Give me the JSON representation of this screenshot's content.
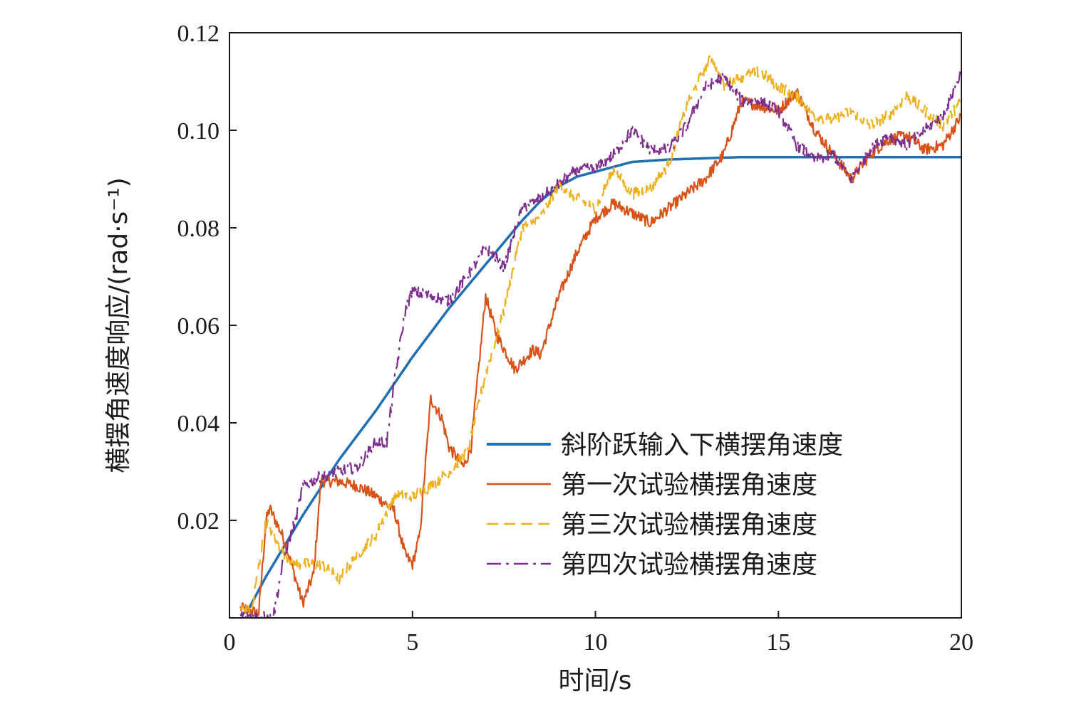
{
  "chart_data": {
    "type": "line",
    "title": "",
    "xlabel": "时间/s",
    "ylabel": "横摆角速度响应/(rad·s⁻¹)",
    "xlim": [
      0,
      20
    ],
    "ylim": [
      0,
      0.12
    ],
    "x_ticks": [
      0,
      5,
      10,
      15,
      20
    ],
    "y_ticks": [
      0.02,
      0.04,
      0.06,
      0.08,
      0.1,
      0.12
    ],
    "x_tick_labels": [
      "0",
      "5",
      "10",
      "15",
      "20"
    ],
    "y_tick_labels": [
      "0.02",
      "0.04",
      "0.06",
      "0.08",
      "0.10",
      "0.12"
    ],
    "grid": false,
    "legend_position": "bottom-right",
    "series": [
      {
        "name": "斜阶跃输入下横摆角速度",
        "color": "#1f6fb2",
        "style": "solid",
        "noise": 0,
        "points": [
          [
            0.3,
            0.0005
          ],
          [
            0.5,
            0.0015
          ],
          [
            1,
            0.0085
          ],
          [
            2,
            0.021
          ],
          [
            3,
            0.0325
          ],
          [
            4,
            0.0425
          ],
          [
            5,
            0.0535
          ],
          [
            6,
            0.0635
          ],
          [
            7,
            0.0725
          ],
          [
            8,
            0.0815
          ],
          [
            8.5,
            0.0855
          ],
          [
            9,
            0.0885
          ],
          [
            9.5,
            0.0905
          ],
          [
            10,
            0.0915
          ],
          [
            11,
            0.0935
          ],
          [
            12,
            0.094
          ],
          [
            14,
            0.0945
          ],
          [
            20,
            0.0945
          ]
        ]
      },
      {
        "name": "第一次试验横摆角速度",
        "color": "#d95319",
        "style": "solid",
        "noise": 0.0012,
        "points": [
          [
            0.3,
            0.002
          ],
          [
            0.8,
            0.001
          ],
          [
            1,
            0.02
          ],
          [
            1.1,
            0.0225
          ],
          [
            1.5,
            0.016
          ],
          [
            2,
            0.003
          ],
          [
            2.3,
            0.009
          ],
          [
            2.5,
            0.028
          ],
          [
            3,
            0.028
          ],
          [
            3.5,
            0.027
          ],
          [
            4,
            0.025
          ],
          [
            4.5,
            0.022
          ],
          [
            4.8,
            0.013
          ],
          [
            5,
            0.011
          ],
          [
            5.2,
            0.017
          ],
          [
            5.5,
            0.045
          ],
          [
            5.8,
            0.041
          ],
          [
            6,
            0.035
          ],
          [
            6.4,
            0.031
          ],
          [
            6.6,
            0.035
          ],
          [
            7,
            0.066
          ],
          [
            7.3,
            0.058
          ],
          [
            7.8,
            0.051
          ],
          [
            8.3,
            0.055
          ],
          [
            8.5,
            0.054
          ],
          [
            9,
            0.066
          ],
          [
            9.5,
            0.075
          ],
          [
            10,
            0.082
          ],
          [
            10.5,
            0.085
          ],
          [
            11,
            0.083
          ],
          [
            11.5,
            0.081
          ],
          [
            12,
            0.084
          ],
          [
            12.5,
            0.087
          ],
          [
            13,
            0.09
          ],
          [
            13.5,
            0.095
          ],
          [
            14,
            0.106
          ],
          [
            15,
            0.104
          ],
          [
            15.5,
            0.108
          ],
          [
            16,
            0.1
          ],
          [
            16.5,
            0.095
          ],
          [
            17,
            0.09
          ],
          [
            17.5,
            0.095
          ],
          [
            18,
            0.098
          ],
          [
            18.5,
            0.099
          ],
          [
            19,
            0.096
          ],
          [
            19.5,
            0.097
          ],
          [
            20,
            0.103
          ]
        ]
      },
      {
        "name": "第三次试验横摆角速度",
        "color": "#edb120",
        "style": "dashed",
        "noise": 0.0012,
        "points": [
          [
            0.3,
            0.002
          ],
          [
            0.6,
            0.001
          ],
          [
            1,
            0.02
          ],
          [
            1.4,
            0.014
          ],
          [
            1.8,
            0.011
          ],
          [
            2.5,
            0.011
          ],
          [
            3,
            0.008
          ],
          [
            3.5,
            0.013
          ],
          [
            4,
            0.017
          ],
          [
            4.5,
            0.025
          ],
          [
            5,
            0.025
          ],
          [
            5.5,
            0.027
          ],
          [
            6,
            0.03
          ],
          [
            6.5,
            0.034
          ],
          [
            7,
            0.05
          ],
          [
            7.5,
            0.063
          ],
          [
            8,
            0.08
          ],
          [
            8.5,
            0.082
          ],
          [
            9,
            0.089
          ],
          [
            9.5,
            0.086
          ],
          [
            10,
            0.084
          ],
          [
            10.5,
            0.092
          ],
          [
            11,
            0.087
          ],
          [
            11.5,
            0.088
          ],
          [
            12,
            0.093
          ],
          [
            12.5,
            0.105
          ],
          [
            13,
            0.113
          ],
          [
            13.2,
            0.115
          ],
          [
            13.5,
            0.109
          ],
          [
            14,
            0.111
          ],
          [
            14.5,
            0.112
          ],
          [
            15,
            0.109
          ],
          [
            15.5,
            0.107
          ],
          [
            16,
            0.103
          ],
          [
            16.5,
            0.102
          ],
          [
            17,
            0.104
          ],
          [
            17.5,
            0.101
          ],
          [
            18,
            0.103
          ],
          [
            18.5,
            0.107
          ],
          [
            19,
            0.104
          ],
          [
            19.5,
            0.101
          ],
          [
            20,
            0.106
          ]
        ]
      },
      {
        "name": "第四次试验横摆角速度",
        "color": "#7e2f8e",
        "style": "dashdot",
        "noise": 0.0012,
        "points": [
          [
            0.3,
            0.0005
          ],
          [
            0.7,
            0.0003
          ],
          [
            1.2,
            0.0003
          ],
          [
            1.5,
            0.013
          ],
          [
            1.8,
            0.02
          ],
          [
            2,
            0.027
          ],
          [
            2.5,
            0.029
          ],
          [
            3,
            0.03
          ],
          [
            3.5,
            0.031
          ],
          [
            4,
            0.036
          ],
          [
            4.3,
            0.036
          ],
          [
            4.5,
            0.048
          ],
          [
            4.8,
            0.063
          ],
          [
            5,
            0.067
          ],
          [
            5.5,
            0.066
          ],
          [
            6,
            0.065
          ],
          [
            6.5,
            0.07
          ],
          [
            7,
            0.076
          ],
          [
            7.5,
            0.072
          ],
          [
            8,
            0.084
          ],
          [
            8.5,
            0.086
          ],
          [
            9,
            0.089
          ],
          [
            9.5,
            0.092
          ],
          [
            10,
            0.092
          ],
          [
            10.5,
            0.095
          ],
          [
            11,
            0.1
          ],
          [
            11.5,
            0.096
          ],
          [
            12,
            0.096
          ],
          [
            12.5,
            0.101
          ],
          [
            13,
            0.109
          ],
          [
            13.5,
            0.111
          ],
          [
            14,
            0.106
          ],
          [
            14.5,
            0.106
          ],
          [
            15,
            0.104
          ],
          [
            15.5,
            0.097
          ],
          [
            16,
            0.094
          ],
          [
            16.5,
            0.095
          ],
          [
            17,
            0.09
          ],
          [
            17.5,
            0.096
          ],
          [
            18,
            0.099
          ],
          [
            18.5,
            0.097
          ],
          [
            19,
            0.1
          ],
          [
            19.5,
            0.103
          ],
          [
            20,
            0.112
          ]
        ]
      }
    ]
  }
}
